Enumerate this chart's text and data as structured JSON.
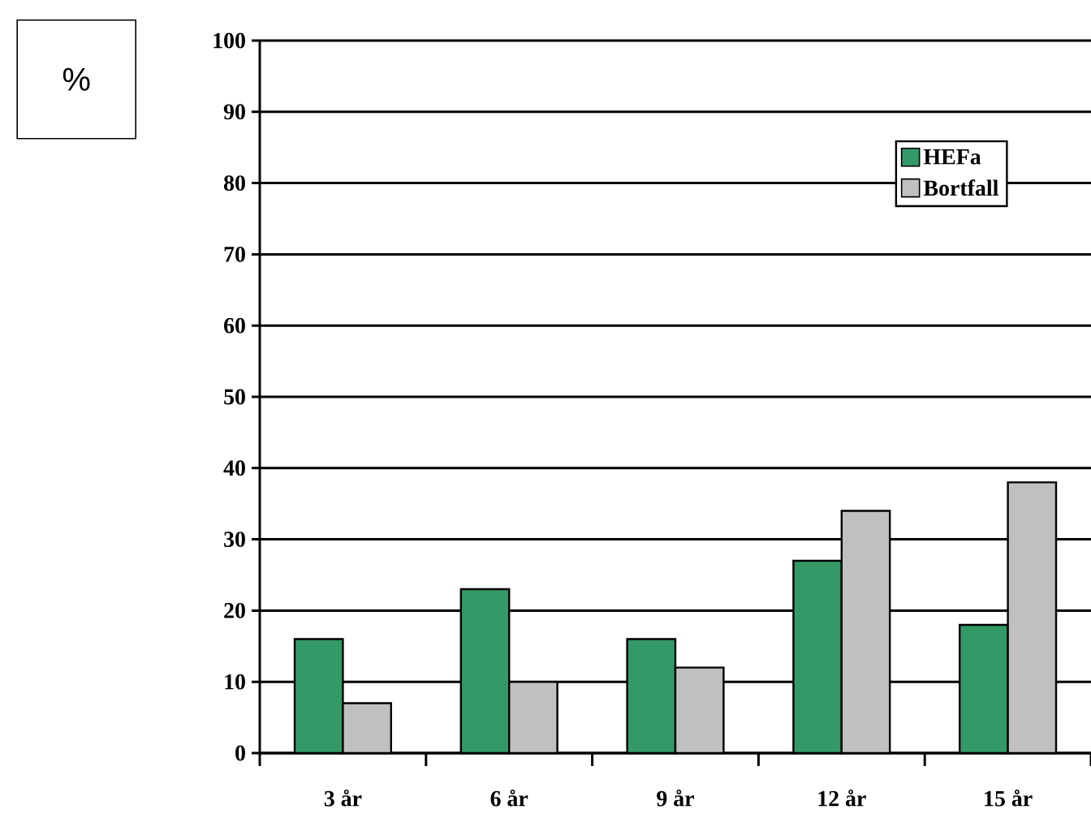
{
  "chart_data": {
    "type": "bar",
    "ylabel": "%",
    "categories": [
      "3 år",
      "6 år",
      "9 år",
      "12 år",
      "15 år"
    ],
    "series": [
      {
        "name": "HEFa",
        "color": "#339966",
        "values": [
          16,
          23,
          16,
          27,
          18
        ]
      },
      {
        "name": "Bortfall",
        "color": "#c0c0c0",
        "values": [
          7,
          10,
          12,
          34,
          38
        ]
      }
    ],
    "ylim": [
      0,
      100
    ],
    "yticks": [
      0,
      10,
      20,
      30,
      40,
      50,
      60,
      70,
      80,
      90,
      100
    ],
    "grid": "y",
    "legend": "top right"
  }
}
